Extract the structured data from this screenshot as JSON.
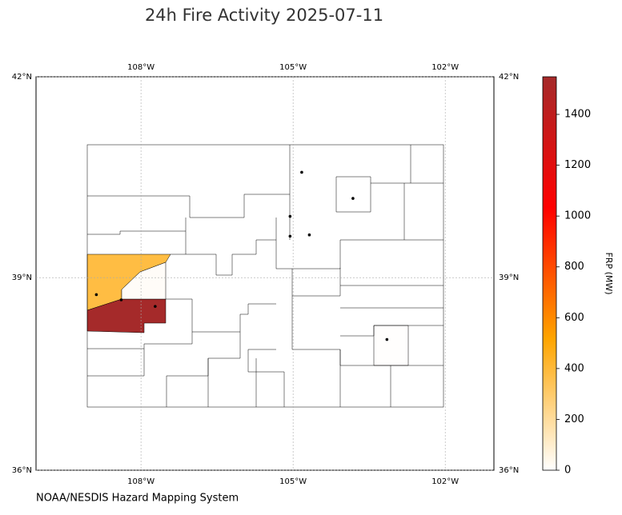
{
  "title": "24h Fire Activity 2025-07-11",
  "source": "NOAA/NESDIS Hazard Mapping System",
  "map": {
    "xlim": [
      -110.07,
      -101.04
    ],
    "ylim": [
      36,
      42
    ],
    "xticks": [
      {
        "value": -108,
        "label": "108°W"
      },
      {
        "value": -105,
        "label": "105°W"
      },
      {
        "value": -102,
        "label": "102°W"
      }
    ],
    "yticks": [
      {
        "value": 36,
        "label": "36°N"
      },
      {
        "value": 39,
        "label": "39°N"
      },
      {
        "value": 42,
        "label": "42°N"
      }
    ],
    "grid": true,
    "fires": {
      "lon": [
        -108.88,
        -108.39,
        -107.72,
        -105.06,
        -105.06,
        -104.83,
        -103.82,
        -104.68,
        -103.15
      ],
      "lat": [
        38.74,
        38.66,
        38.56,
        39.93,
        39.63,
        40.59,
        40.2,
        39.65,
        38.05
      ]
    },
    "region_frp": [
      380,
      1548,
      15,
      5
    ]
  },
  "colorbar": {
    "label": "FRP (MW)",
    "clim": [
      0,
      1548
    ],
    "ticks": [
      0,
      200,
      400,
      600,
      800,
      1000,
      1200,
      1400
    ],
    "colormap": [
      "#ffffff",
      "#ffa500",
      "#ff0000",
      "#a52a2a"
    ]
  }
}
